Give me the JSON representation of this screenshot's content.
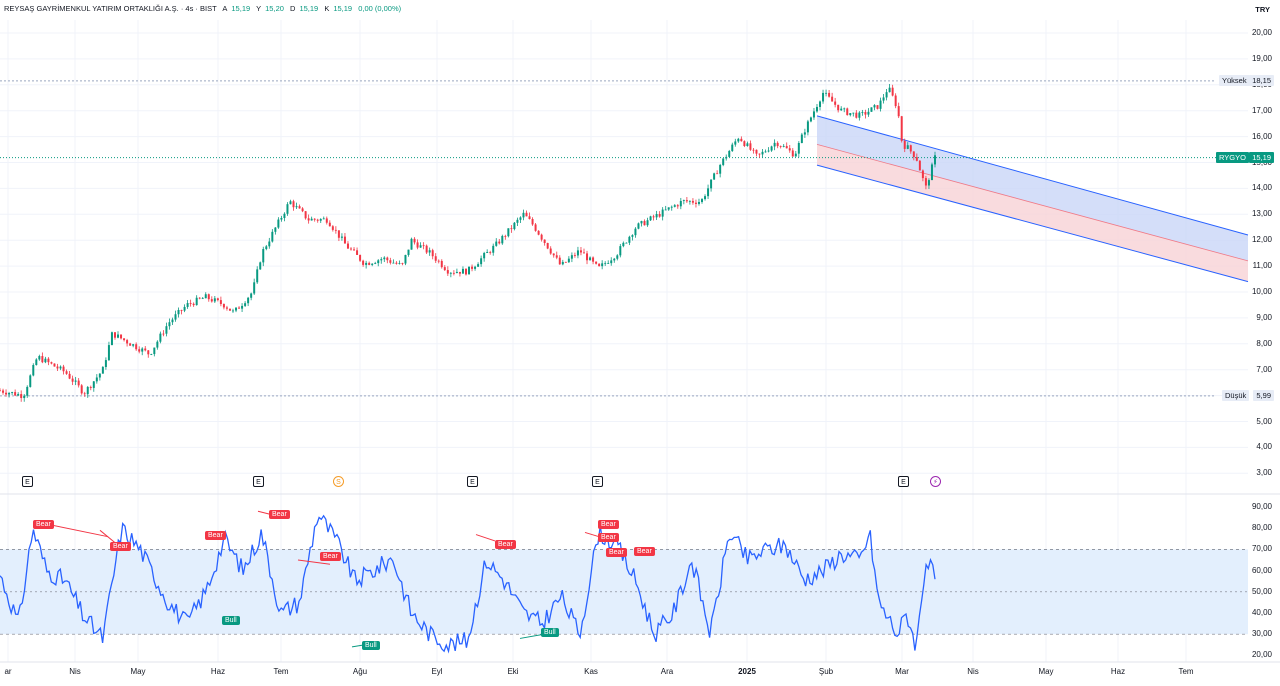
{
  "header": {
    "title": "REYSAŞ GAYRİMENKUL YATIRIM ORTAKLIĞI A.Ş. · 4s · BIST",
    "ohlc": [
      {
        "label": "A",
        "value": "15,19"
      },
      {
        "label": "Y",
        "value": "15,20"
      },
      {
        "label": "D",
        "value": "15,19"
      },
      {
        "label": "K",
        "value": "15,19"
      }
    ],
    "change": "0,00 (0,00%)",
    "currency": "TRY"
  },
  "price_axis": [
    "20,00",
    "19,00",
    "18,00",
    "17,00",
    "16,00",
    "15,00",
    "14,00",
    "13,00",
    "12,00",
    "11,00",
    "10,00",
    "9,00",
    "8,00",
    "7,00",
    "6,00",
    "5,00",
    "4,00",
    "3,00"
  ],
  "markers": {
    "high_label": "Yüksek",
    "high_value": "18,15",
    "low_label": "Düşük",
    "low_value": "5,99",
    "symbol": "RYGYO",
    "last_value": "15,19"
  },
  "rsi_axis": [
    "90,00",
    "80,00",
    "70,00",
    "60,00",
    "50,00",
    "40,00",
    "30,00",
    "20,00"
  ],
  "time_axis": [
    {
      "text": "ar",
      "bold": false
    },
    {
      "text": "Nis",
      "bold": false
    },
    {
      "text": "May",
      "bold": false
    },
    {
      "text": "Haz",
      "bold": false
    },
    {
      "text": "Tem",
      "bold": false
    },
    {
      "text": "Ağu",
      "bold": false
    },
    {
      "text": "Eyl",
      "bold": false
    },
    {
      "text": "Eki",
      "bold": false
    },
    {
      "text": "Kas",
      "bold": false
    },
    {
      "text": "Ara",
      "bold": false
    },
    {
      "text": "2025",
      "bold": true
    },
    {
      "text": "Şub",
      "bold": false
    },
    {
      "text": "Mar",
      "bold": false
    },
    {
      "text": "Nis",
      "bold": false
    },
    {
      "text": "May",
      "bold": false
    },
    {
      "text": "Haz",
      "bold": false
    },
    {
      "text": "Tem",
      "bold": false
    }
  ],
  "events": [
    {
      "type": "earnings",
      "text": "E"
    },
    {
      "type": "earnings",
      "text": "E"
    },
    {
      "type": "dividend",
      "text": "S"
    },
    {
      "type": "earnings",
      "text": "E"
    },
    {
      "type": "earnings",
      "text": "E"
    },
    {
      "type": "earnings",
      "text": "E"
    },
    {
      "type": "split",
      "text": "⚡"
    }
  ],
  "divergences": [
    {
      "type": "bear",
      "label": "Bear"
    },
    {
      "type": "bear",
      "label": "Bear"
    },
    {
      "type": "bear",
      "label": "Bear"
    },
    {
      "type": "bear",
      "label": "Bear"
    },
    {
      "type": "bear",
      "label": "Bear"
    },
    {
      "type": "bear",
      "label": "Bear"
    },
    {
      "type": "bear",
      "label": "Bear"
    },
    {
      "type": "bear",
      "label": "Bear"
    },
    {
      "type": "bear",
      "label": "Bear"
    },
    {
      "type": "bear",
      "label": "Bear"
    },
    {
      "type": "bull",
      "label": "Bull"
    },
    {
      "type": "bull",
      "label": "Bull"
    },
    {
      "type": "bull",
      "label": "Bull"
    }
  ],
  "colors": {
    "up": "#089981",
    "down": "#f23645",
    "rsi": "#2962ff",
    "rsi_band": "#e3effd",
    "channel_upper": "#c9d6f7",
    "channel_lower": "#f7d2d6",
    "channel_line": "#2962ff",
    "grid": "#f0f3fa",
    "marker_line": "#9aa7c0"
  },
  "chart_data": {
    "type": "candlestick",
    "interval": "4h",
    "price_range": [
      3,
      20
    ],
    "rsi_range": [
      20,
      90
    ],
    "rsi_band": [
      30,
      70
    ],
    "price_path": [
      [
        0,
        6.2
      ],
      [
        0.025,
        6.0
      ],
      [
        0.04,
        7.5
      ],
      [
        0.07,
        6.9
      ],
      [
        0.09,
        6.1
      ],
      [
        0.11,
        7.0
      ],
      [
        0.12,
        8.4
      ],
      [
        0.14,
        8.0
      ],
      [
        0.16,
        7.6
      ],
      [
        0.18,
        8.8
      ],
      [
        0.2,
        9.5
      ],
      [
        0.22,
        9.8
      ],
      [
        0.24,
        9.5
      ],
      [
        0.25,
        9.2
      ],
      [
        0.27,
        10.0
      ],
      [
        0.28,
        11.5
      ],
      [
        0.31,
        13.5
      ],
      [
        0.33,
        12.8
      ],
      [
        0.35,
        12.8
      ],
      [
        0.37,
        11.8
      ],
      [
        0.39,
        11.1
      ],
      [
        0.41,
        11.3
      ],
      [
        0.43,
        11.0
      ],
      [
        0.44,
        12.0
      ],
      [
        0.46,
        11.5
      ],
      [
        0.48,
        10.8
      ],
      [
        0.5,
        10.8
      ],
      [
        0.53,
        11.8
      ],
      [
        0.56,
        13.0
      ],
      [
        0.57,
        12.6
      ],
      [
        0.6,
        11.0
      ],
      [
        0.62,
        11.6
      ],
      [
        0.64,
        10.9
      ],
      [
        0.66,
        11.5
      ],
      [
        0.68,
        12.5
      ],
      [
        0.7,
        12.9
      ],
      [
        0.73,
        13.5
      ],
      [
        0.75,
        13.5
      ],
      [
        0.77,
        14.9
      ],
      [
        0.79,
        16.0
      ],
      [
        0.81,
        15.2
      ],
      [
        0.83,
        15.8
      ],
      [
        0.85,
        15.3
      ],
      [
        0.86,
        16.2
      ],
      [
        0.88,
        17.7
      ],
      [
        0.9,
        17.0
      ],
      [
        0.92,
        16.8
      ],
      [
        0.94,
        17.2
      ],
      [
        0.95,
        17.9
      ],
      [
        0.96,
        17.1
      ],
      [
        0.965,
        15.7
      ],
      [
        0.97,
        15.6
      ],
      [
        0.98,
        15.2
      ],
      [
        0.99,
        14.0
      ],
      [
        1.0,
        15.19
      ]
    ],
    "high": 18.15,
    "low": 5.99,
    "last": 15.19,
    "regression_channel": {
      "upper_start": 16.8,
      "mid_start": 15.7,
      "lower_start": 14.9,
      "upper_end": 12.2,
      "mid_end": 11.2,
      "lower_end": 10.4
    },
    "rsi_path": [
      [
        0,
        58
      ],
      [
        0.02,
        35
      ],
      [
        0.035,
        80
      ],
      [
        0.05,
        60
      ],
      [
        0.07,
        55
      ],
      [
        0.09,
        38
      ],
      [
        0.11,
        28
      ],
      [
        0.13,
        80
      ],
      [
        0.15,
        70
      ],
      [
        0.18,
        45
      ],
      [
        0.2,
        35
      ],
      [
        0.22,
        50
      ],
      [
        0.24,
        75
      ],
      [
        0.26,
        60
      ],
      [
        0.28,
        78
      ],
      [
        0.3,
        40
      ],
      [
        0.32,
        45
      ],
      [
        0.34,
        87
      ],
      [
        0.36,
        74
      ],
      [
        0.38,
        55
      ],
      [
        0.4,
        60
      ],
      [
        0.42,
        66
      ],
      [
        0.44,
        40
      ],
      [
        0.46,
        30
      ],
      [
        0.48,
        25
      ],
      [
        0.5,
        27
      ],
      [
        0.52,
        65
      ],
      [
        0.54,
        55
      ],
      [
        0.56,
        40
      ],
      [
        0.58,
        35
      ],
      [
        0.6,
        48
      ],
      [
        0.62,
        30
      ],
      [
        0.64,
        78
      ],
      [
        0.66,
        72
      ],
      [
        0.68,
        55
      ],
      [
        0.7,
        30
      ],
      [
        0.72,
        40
      ],
      [
        0.74,
        65
      ],
      [
        0.76,
        30
      ],
      [
        0.78,
        78
      ],
      [
        0.8,
        65
      ],
      [
        0.82,
        70
      ],
      [
        0.84,
        72
      ],
      [
        0.86,
        56
      ],
      [
        0.88,
        60
      ],
      [
        0.9,
        68
      ],
      [
        0.92,
        65
      ],
      [
        0.93,
        78
      ],
      [
        0.94,
        45
      ],
      [
        0.96,
        30
      ],
      [
        0.97,
        40
      ],
      [
        0.98,
        24
      ],
      [
        0.99,
        65
      ],
      [
        1.0,
        57
      ]
    ]
  }
}
